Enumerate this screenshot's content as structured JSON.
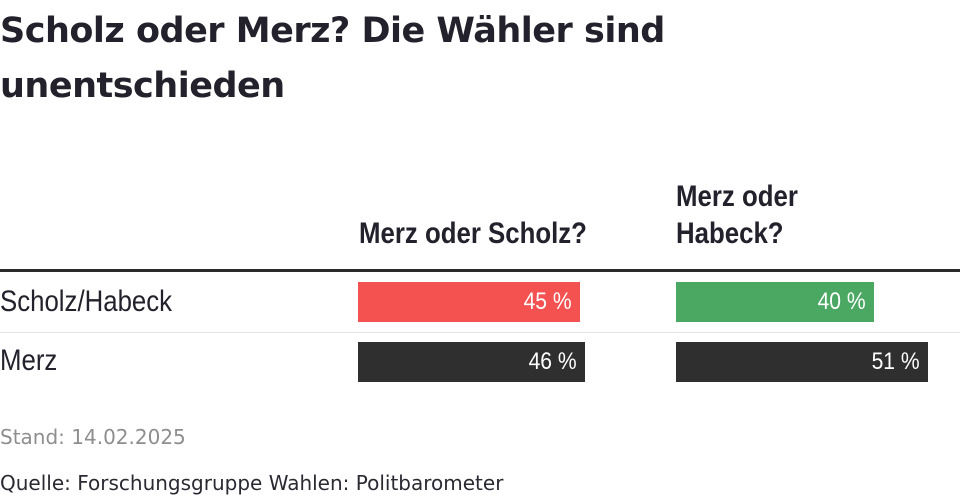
{
  "chart_data": {
    "type": "bar",
    "title": "Scholz oder Merz? Die Wähler sind unentschieden",
    "columns": [
      "Merz oder Scholz?",
      "Merz oder Habeck?"
    ],
    "rows": [
      "Scholz/Habeck",
      "Merz"
    ],
    "value_unit": "%",
    "max_value": 51,
    "values": [
      [
        45,
        40
      ],
      [
        46,
        51
      ]
    ],
    "value_labels": [
      [
        "45 %",
        "40 %"
      ],
      [
        "46 %",
        "51 %"
      ]
    ],
    "colors": [
      [
        "#f45151",
        "#4aa862"
      ],
      [
        "#2f2f2f",
        "#2f2f2f"
      ]
    ],
    "date": "Stand: 14.02.2025",
    "source": "Quelle: Forschungsgruppe Wahlen: Politbarometer"
  }
}
